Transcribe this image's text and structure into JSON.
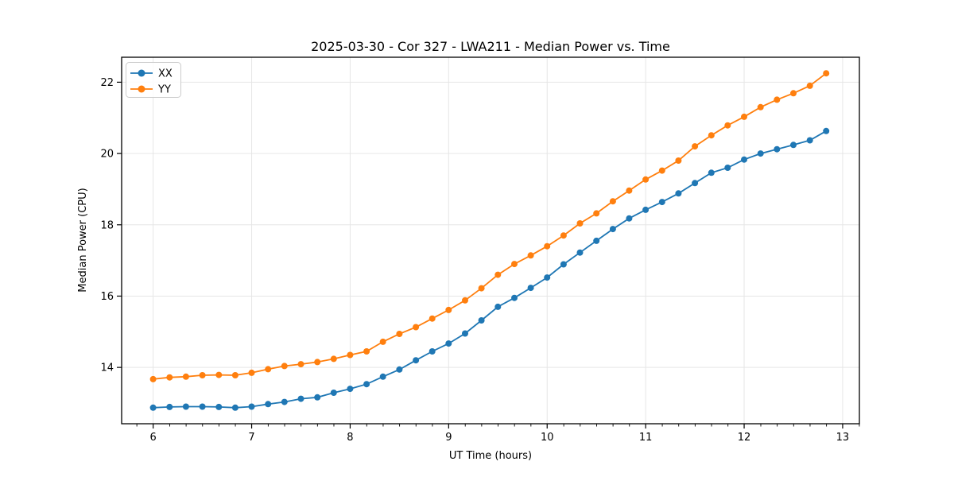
{
  "title": "2025-03-30 - Cor 327 - LWA211 - Median Power vs. Time",
  "xlabel": "UT Time (hours)",
  "ylabel": "Median Power (CPU)",
  "legend": {
    "position": "upper left",
    "items": [
      {
        "label": "XX",
        "color": "#1f77b4"
      },
      {
        "label": "YY",
        "color": "#ff7f0e"
      }
    ]
  },
  "colors": {
    "series_xx": "#1f77b4",
    "series_yy": "#ff7f0e",
    "grid": "#e6e6e6",
    "spine": "#000000",
    "background": "#ffffff",
    "legend_border": "#cccccc"
  },
  "chart_data": {
    "type": "line",
    "title": "2025-03-30 - Cor 327 - LWA211 - Median Power vs. Time",
    "xlabel": "UT Time (hours)",
    "ylabel": "Median Power (CPU)",
    "grid": true,
    "legend_position": "upper left",
    "xlim": [
      5.68,
      13.17
    ],
    "ylim": [
      12.42,
      22.7
    ],
    "xticks": [
      6,
      7,
      8,
      9,
      10,
      11,
      12,
      13
    ],
    "yticks": [
      14,
      16,
      18,
      20,
      22
    ],
    "x_minor_step": 0.1667,
    "marker": "circle",
    "x": [
      6.0,
      6.167,
      6.333,
      6.5,
      6.667,
      6.833,
      7.0,
      7.167,
      7.333,
      7.5,
      7.667,
      7.833,
      8.0,
      8.167,
      8.333,
      8.5,
      8.667,
      8.833,
      9.0,
      9.167,
      9.333,
      9.5,
      9.667,
      9.833,
      10.0,
      10.167,
      10.333,
      10.5,
      10.667,
      10.833,
      11.0,
      11.167,
      11.333,
      11.5,
      11.667,
      11.833,
      12.0,
      12.167,
      12.333,
      12.5,
      12.667,
      12.833
    ],
    "series": [
      {
        "name": "XX",
        "color": "#1f77b4",
        "values": [
          12.87,
          12.89,
          12.9,
          12.9,
          12.89,
          12.87,
          12.9,
          12.97,
          13.03,
          13.12,
          13.16,
          13.29,
          13.4,
          13.53,
          13.74,
          13.94,
          14.2,
          14.45,
          14.67,
          14.95,
          15.32,
          15.7,
          15.95,
          16.23,
          16.52,
          16.89,
          17.22,
          17.55,
          17.88,
          18.18,
          18.42,
          18.64,
          18.88,
          19.17,
          19.46,
          19.6,
          19.83,
          20.0,
          20.12,
          20.24,
          20.37,
          20.63
        ]
      },
      {
        "name": "YY",
        "color": "#ff7f0e",
        "values": [
          13.67,
          13.72,
          13.74,
          13.78,
          13.79,
          13.78,
          13.85,
          13.95,
          14.04,
          14.09,
          14.15,
          14.24,
          14.35,
          14.45,
          14.72,
          14.94,
          15.13,
          15.37,
          15.61,
          15.88,
          16.22,
          16.6,
          16.9,
          17.14,
          17.4,
          17.7,
          18.04,
          18.32,
          18.66,
          18.96,
          19.27,
          19.52,
          19.8,
          20.2,
          20.51,
          20.79,
          21.03,
          21.3,
          21.51,
          21.69,
          21.9,
          22.25
        ]
      }
    ]
  }
}
